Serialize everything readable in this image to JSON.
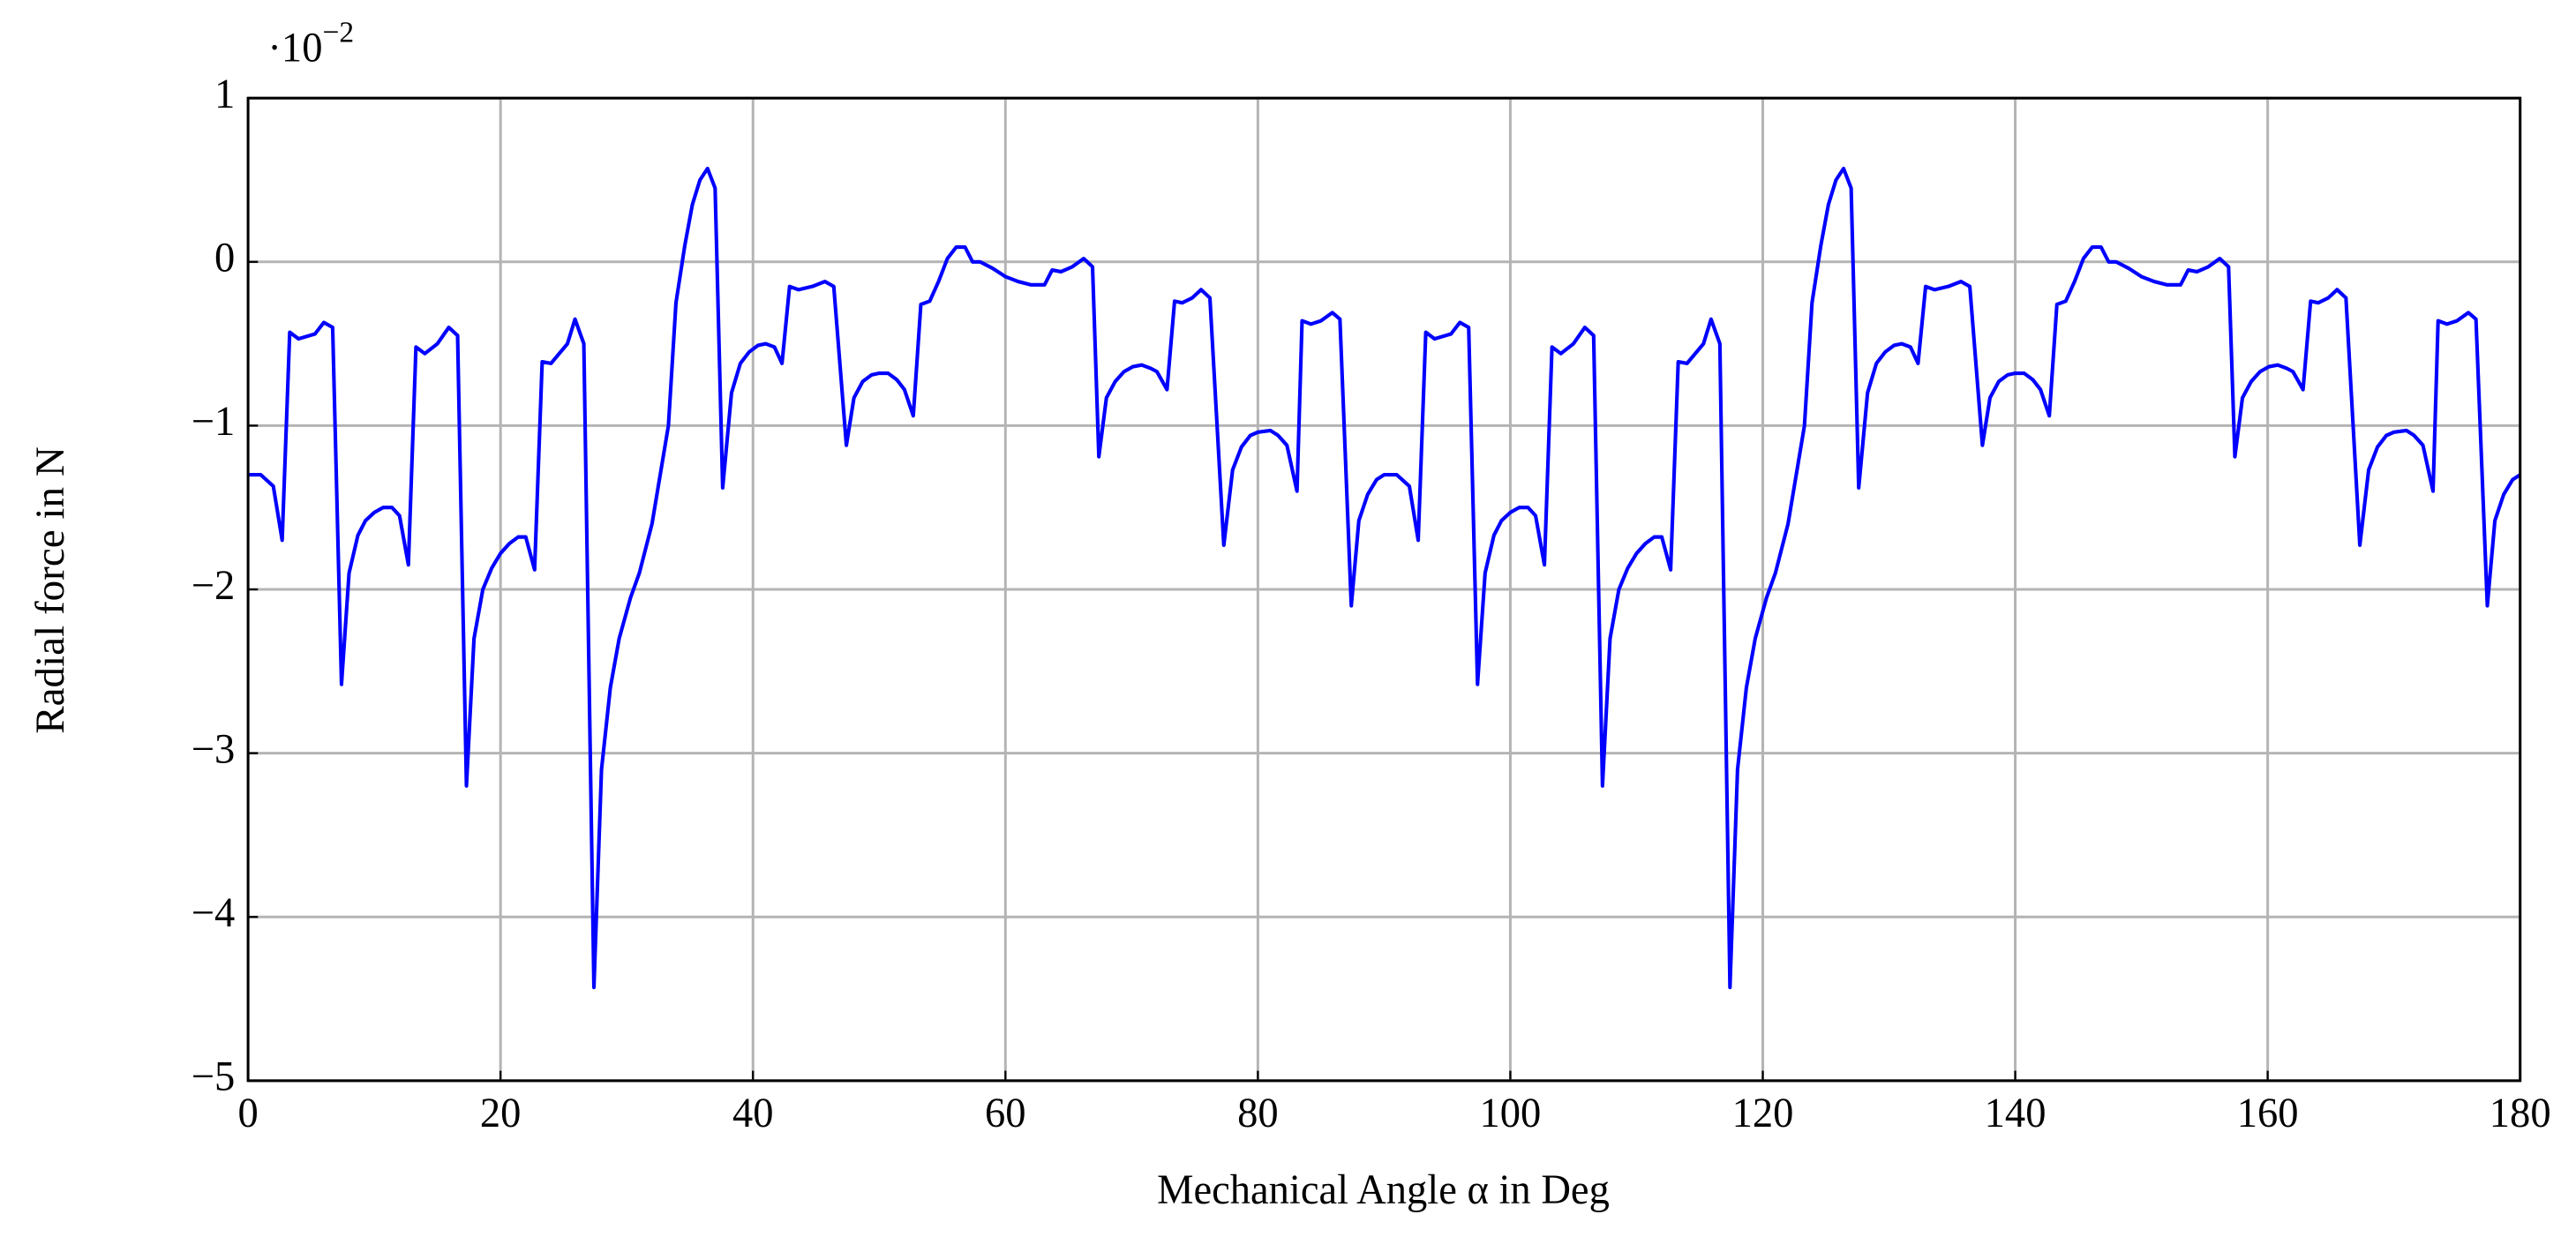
{
  "chart_data": {
    "type": "line",
    "x_label": "Mechanical Angle α in Deg",
    "y_label": "Radial force in N",
    "y_multiplier": {
      "base": "·10",
      "exponent": "−2"
    },
    "xlim": [
      0,
      180
    ],
    "ylim": [
      -5,
      1
    ],
    "xticks": [
      0,
      20,
      40,
      60,
      80,
      100,
      120,
      140,
      160,
      180
    ],
    "yticks": [
      {
        "value": -5,
        "label": "−5"
      },
      {
        "value": -4,
        "label": "−4"
      },
      {
        "value": -3,
        "label": "−3"
      },
      {
        "value": -2,
        "label": "−2"
      },
      {
        "value": -1,
        "label": "−1"
      },
      0,
      1
    ],
    "grid": true,
    "x": [
      0,
      1,
      2,
      2.7,
      3.3,
      4,
      5.3,
      6,
      6.7,
      7.4,
      8,
      8.7,
      9.3,
      10,
      10.7,
      11.4,
      12,
      12.7,
      13.3,
      14,
      15,
      15.9,
      16.6,
      17.3,
      17.9,
      18.6,
      19.3,
      20,
      20.7,
      21.4,
      22,
      22.7,
      23.3,
      24,
      25.3,
      25.9,
      26.6,
      27.4,
      28,
      28.7,
      29.4,
      30.3,
      31,
      32,
      33.3,
      33.9,
      34.6,
      35.2,
      35.8,
      36.4,
      37,
      37.6,
      38.3,
      39,
      39.7,
      40.4,
      41,
      41.7,
      42.3,
      42.9,
      43.6,
      44.7,
      45.7,
      46.4,
      47.4,
      48,
      48.7,
      49.4,
      50,
      50.7,
      51.4,
      52,
      52.7,
      53.3,
      54,
      54.7,
      55.4,
      56.1,
      56.8,
      57.4,
      58,
      59,
      60,
      61,
      62,
      63.1,
      63.7,
      64.4,
      65.3,
      66.2,
      66.9,
      67.4,
      68,
      68.7,
      69.4,
      70.1,
      70.8,
      71.5,
      72,
      72.8,
      73.4,
      74,
      74.8,
      75.5,
      76.2,
      77.3,
      78,
      78.7,
      79.4,
      80,
      81,
      81.6,
      82.3,
      83.1,
      83.5,
      84.2,
      85,
      85.9,
      86.5,
      87.4,
      88,
      88.7,
      89.4,
      90,
      91,
      92,
      92.7,
      93.3,
      94,
      95.3,
      96,
      96.7,
      97.4,
      98,
      98.7,
      99.3,
      100,
      100.7,
      101.4,
      102,
      102.7,
      103.3,
      104,
      105,
      105.9,
      106.6,
      107.3,
      107.9,
      108.6,
      109.3,
      110,
      110.7,
      111.4,
      112,
      112.7,
      113.3,
      114,
      115.3,
      115.9,
      116.6,
      117.4,
      118,
      118.7,
      119.4,
      120.3,
      121,
      122,
      123.3,
      123.9,
      124.6,
      125.2,
      125.8,
      126.4,
      127,
      127.6,
      128.3,
      129,
      129.7,
      130.4,
      131,
      131.7,
      132.3,
      132.9,
      133.6,
      134.7,
      135.7,
      136.4,
      137.4,
      138,
      138.7,
      139.4,
      140,
      140.7,
      141.4,
      142,
      142.7,
      143.3,
      144,
      144.7,
      145.4,
      146.1,
      146.8,
      147.4,
      148,
      149,
      150,
      151,
      152,
      153.1,
      153.7,
      154.4,
      155.3,
      156.2,
      156.9,
      157.4,
      158,
      158.7,
      159.4,
      160.1,
      160.8,
      161.5,
      162,
      162.8,
      163.4,
      164,
      164.8,
      165.5,
      166.2,
      167.3,
      168,
      168.7,
      169.4,
      170,
      171,
      171.6,
      172.3,
      173.1,
      173.5,
      174.2,
      175,
      175.9,
      176.5,
      177.4,
      178,
      178.7,
      179.4,
      180
    ],
    "series": [
      {
        "color": "#0000ff",
        "values": [
          -1.3,
          -1.3,
          -1.37,
          -1.7,
          -0.43,
          -0.47,
          -0.44,
          -0.37,
          -0.4,
          -2.58,
          -1.9,
          -1.67,
          -1.58,
          -1.53,
          -1.5,
          -1.5,
          -1.55,
          -1.85,
          -0.52,
          -0.56,
          -0.5,
          -0.4,
          -0.45,
          -3.2,
          -2.3,
          -2.0,
          -1.87,
          -1.78,
          -1.72,
          -1.68,
          -1.68,
          -1.88,
          -0.61,
          -0.62,
          -0.5,
          -0.35,
          -0.5,
          -4.43,
          -3.1,
          -2.6,
          -2.3,
          -2.05,
          -1.9,
          -1.6,
          -1.0,
          -0.25,
          0.1,
          0.35,
          0.5,
          0.57,
          0.45,
          -1.38,
          -0.8,
          -0.62,
          -0.55,
          -0.51,
          -0.5,
          -0.52,
          -0.62,
          -0.15,
          -0.17,
          -0.15,
          -0.12,
          -0.15,
          -1.12,
          -0.83,
          -0.73,
          -0.69,
          -0.68,
          -0.68,
          -0.72,
          -0.78,
          -0.94,
          -0.26,
          -0.24,
          -0.12,
          0.02,
          0.09,
          0.09,
          0,
          0,
          -0.04,
          -0.09,
          -0.12,
          -0.14,
          -0.14,
          -0.05,
          -0.06,
          -0.03,
          0.02,
          -0.03,
          -1.19,
          -0.83,
          -0.73,
          -0.67,
          -0.64,
          -0.63,
          -0.65,
          -0.67,
          -0.78,
          -0.24,
          -0.25,
          -0.22,
          -0.17,
          -0.22,
          -1.73,
          -1.27,
          -1.13,
          -1.06,
          -1.04,
          -1.03,
          -1.06,
          -1.12,
          -1.4,
          -0.36,
          -0.38,
          -0.36,
          -0.31,
          -0.35,
          -2.1,
          -1.58,
          -1.42,
          -1.33,
          -1.3,
          -1.3,
          -1.37,
          -1.7,
          -0.43,
          -0.47,
          -0.44,
          -0.37,
          -0.4,
          -2.58,
          -1.9,
          -1.67,
          -1.58,
          -1.53,
          -1.5,
          -1.5,
          -1.55,
          -1.85,
          -0.52,
          -0.56,
          -0.5,
          -0.4,
          -0.45,
          -3.2,
          -2.3,
          -2.0,
          -1.87,
          -1.78,
          -1.72,
          -1.68,
          -1.68,
          -1.88,
          -0.61,
          -0.62,
          -0.5,
          -0.35,
          -0.5,
          -4.43,
          -3.1,
          -2.6,
          -2.3,
          -2.05,
          -1.9,
          -1.6,
          -1.0,
          -0.25,
          0.1,
          0.35,
          0.5,
          0.57,
          0.45,
          -1.38,
          -0.8,
          -0.62,
          -0.55,
          -0.51,
          -0.5,
          -0.52,
          -0.62,
          -0.15,
          -0.17,
          -0.15,
          -0.12,
          -0.15,
          -1.12,
          -0.83,
          -0.73,
          -0.69,
          -0.68,
          -0.68,
          -0.72,
          -0.78,
          -0.94,
          -0.26,
          -0.24,
          -0.12,
          0.02,
          0.09,
          0.09,
          0,
          0,
          -0.04,
          -0.09,
          -0.12,
          -0.14,
          -0.14,
          -0.05,
          -0.06,
          -0.03,
          0.02,
          -0.03,
          -1.19,
          -0.83,
          -0.73,
          -0.67,
          -0.64,
          -0.63,
          -0.65,
          -0.67,
          -0.78,
          -0.24,
          -0.25,
          -0.22,
          -0.17,
          -0.22,
          -1.73,
          -1.27,
          -1.13,
          -1.06,
          -1.04,
          -1.03,
          -1.06,
          -1.12,
          -1.4,
          -0.36,
          -0.38,
          -0.36,
          -0.31,
          -0.35,
          -2.1,
          -1.58,
          -1.42,
          -1.33,
          -1.3
        ]
      }
    ]
  }
}
